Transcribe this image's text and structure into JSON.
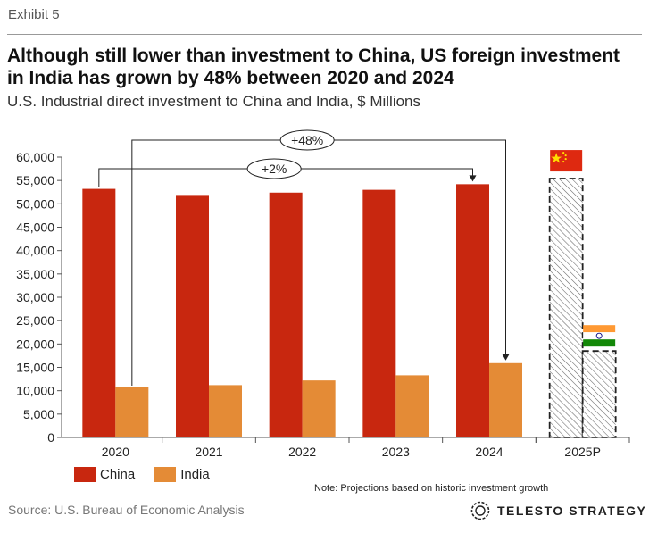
{
  "header": {
    "exhibit": "Exhibit 5",
    "title": "Although still lower than investment to China, US foreign investment in India has grown by 48% between 2020 and 2024",
    "subtitle": "U.S. Industrial direct investment to China and India, $ Millions"
  },
  "chart_data": {
    "type": "bar",
    "categories": [
      "2020",
      "2021",
      "2022",
      "2023",
      "2024",
      "2025P"
    ],
    "series": [
      {
        "name": "China",
        "values": [
          53200,
          51900,
          52400,
          53000,
          54200,
          55400
        ],
        "color": "#c8270f"
      },
      {
        "name": "India",
        "values": [
          10700,
          11200,
          12200,
          13300,
          15900,
          18500
        ],
        "color": "#e48b36"
      }
    ],
    "projected_category": "2025P",
    "projected_style": "hatched dashed outline",
    "ylim": [
      0,
      60000
    ],
    "yticks": [
      "0",
      "5,000",
      "10,000",
      "15,000",
      "20,000",
      "25,000",
      "30,000",
      "35,000",
      "40,000",
      "45,000",
      "50,000",
      "55,000",
      "60,000"
    ],
    "grid": false,
    "legend_position": "bottom-left",
    "annotations": [
      {
        "label": "+48%",
        "series": "India",
        "from": "2020",
        "to": "2024"
      },
      {
        "label": "+2%",
        "series": "China",
        "from": "2020",
        "to": "2024"
      }
    ],
    "flags": [
      "China",
      "India"
    ]
  },
  "legend": {
    "items": [
      "China",
      "India"
    ]
  },
  "footer": {
    "note": "Note: Projections based on historic investment growth",
    "source": "Source: U.S. Bureau of Economic Analysis",
    "brand": "TELESTO STRATEGY"
  },
  "colors": {
    "china": "#c8270f",
    "india": "#e48b36",
    "axis": "#555555"
  }
}
